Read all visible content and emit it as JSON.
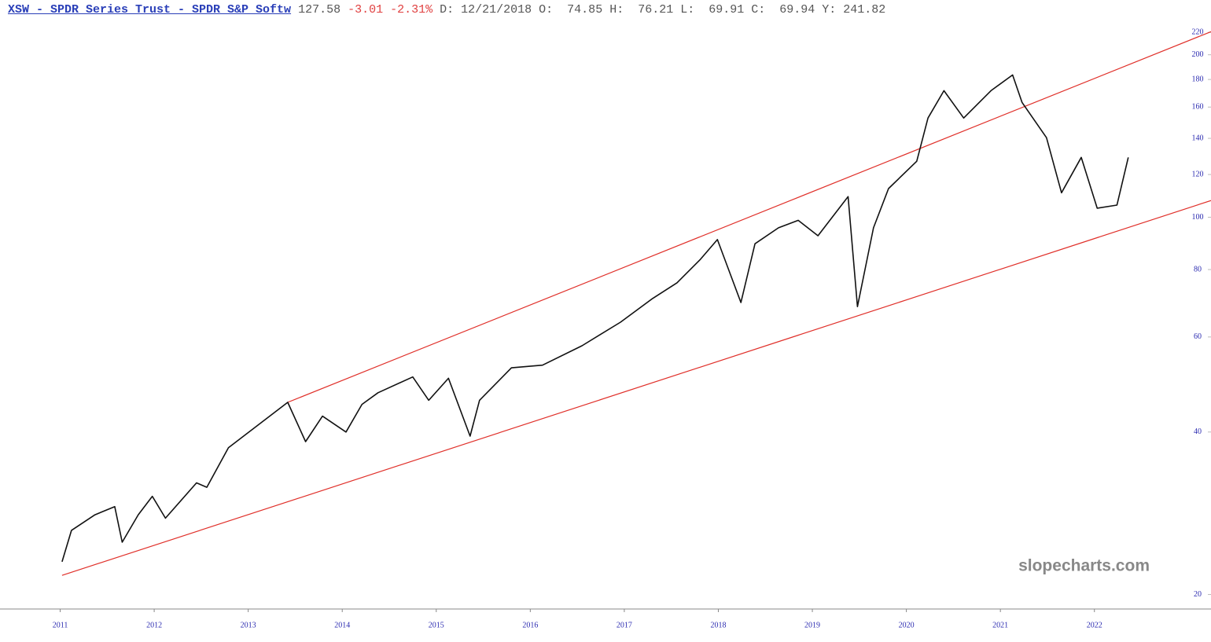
{
  "header": {
    "symbol": "XSW - SPDR Series Trust - SPDR S&P Softw",
    "last": "127.58",
    "change": "-3.01 -2.31%",
    "bar_info": "D: 12/21/2018 O:  74.85 H:  76.21 L:  69.91 C:  69.94 Y: 241.82"
  },
  "watermark": "slopecharts.com",
  "chart_data": {
    "type": "line",
    "log_scale": true,
    "series": [
      {
        "name": "XSW",
        "color": "#111111",
        "x": [
          2011.02,
          2011.12,
          2011.37,
          2011.58,
          2011.66,
          2011.83,
          2011.98,
          2012.12,
          2012.45,
          2012.56,
          2012.79,
          2013.12,
          2013.42,
          2013.61,
          2013.79,
          2014.04,
          2014.21,
          2014.38,
          2014.75,
          2014.92,
          2015.13,
          2015.36,
          2015.46,
          2015.8,
          2016.13,
          2016.55,
          2016.96,
          2017.3,
          2017.56,
          2017.81,
          2017.99,
          2018.1,
          2018.24,
          2018.39,
          2018.64,
          2018.85,
          2019.06,
          2019.38,
          2019.48,
          2019.65,
          2019.81,
          2020.11,
          2020.23,
          2020.4,
          2020.61,
          2020.9,
          2021.13,
          2021.23,
          2021.49,
          2021.65,
          2021.86,
          2022.03,
          2022.24,
          2022.36
        ],
        "values": [
          23.0,
          26.3,
          28.1,
          29.1,
          25.0,
          28.1,
          30.4,
          27.7,
          32.2,
          31.6,
          37.4,
          41.4,
          45.4,
          38.4,
          42.8,
          40.0,
          45.0,
          47.3,
          50.6,
          45.8,
          50.3,
          39.3,
          45.8,
          52.6,
          53.2,
          57.8,
          63.9,
          70.7,
          75.6,
          83.6,
          90.9,
          80.8,
          69.5,
          89.3,
          95.6,
          98.7,
          92.4,
          109.2,
          68.3,
          95.6,
          113,
          127,
          152.7,
          171.6,
          152.7,
          171.6,
          183.5,
          163.2,
          140.4,
          111.0,
          129.1,
          103.9,
          105.3,
          129.1
        ]
      }
    ],
    "trendlines": [
      {
        "color": "#e0302a",
        "x": [
          2013.42,
          2023.24
        ],
        "values": [
          45.4,
          220.7
        ]
      },
      {
        "color": "#e0302a",
        "x": [
          2011.02,
          2023.24
        ],
        "values": [
          21.7,
          107.4
        ]
      }
    ],
    "xlim": [
      2010.36,
      2023.24
    ],
    "xticks": [
      2011,
      2012,
      2013,
      2014,
      2015,
      2016,
      2017,
      2018,
      2019,
      2020,
      2021,
      2022
    ],
    "ylim": [
      18.8,
      230
    ],
    "yticks": [
      20,
      40,
      60,
      80,
      100,
      120,
      140,
      160,
      180,
      200,
      220
    ]
  }
}
